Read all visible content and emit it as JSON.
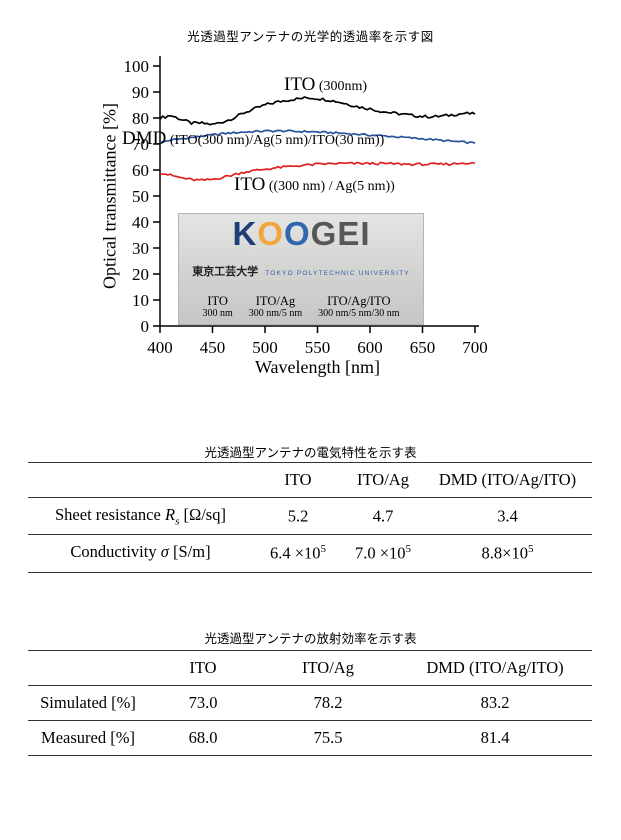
{
  "figure": {
    "title": "光透過型アンテナの光学的透過率を示す図",
    "x_axis_label": "Wavelength [nm]",
    "y_axis_label": "Optical transmittance [%]",
    "labels": {
      "ito": {
        "name": "ITO",
        "detail": " (300nm)"
      },
      "dmd": {
        "name": "DMD",
        "detail": " (ITO(300 nm)/Ag(5 nm)/ITO(30 nm))"
      },
      "ito_ag": {
        "name": "ITO",
        "detail": " ((300 nm) / Ag(5 nm))"
      }
    },
    "photo": {
      "logo_letters": [
        {
          "char": "K",
          "color": "#1f3e78"
        },
        {
          "char": "O",
          "color": "#f0a63c"
        },
        {
          "char": "O",
          "color": "#2f66ae"
        },
        {
          "char": "G",
          "color": "#575757"
        },
        {
          "char": "E",
          "color": "#575757"
        },
        {
          "char": "I",
          "color": "#575757"
        }
      ],
      "logo_sub_jp": "東京工芸大学",
      "logo_sub_en": "TOKYO POLYTECHNIC UNIVERSITY",
      "samples": [
        {
          "name": "ITO",
          "spec": "300 nm"
        },
        {
          "name": "ITO/Ag",
          "spec": "300 nm/5 nm"
        },
        {
          "name": "ITO/Ag/ITO",
          "spec": "300 nm/5 nm/30 nm"
        }
      ]
    }
  },
  "chart_data": [
    {
      "type": "line",
      "title": "光透過型アンテナの光学的透過率を示す図",
      "xlabel": "Wavelength [nm]",
      "ylabel": "Optical transmittance [%]",
      "xlim": [
        400,
        700
      ],
      "ylim": [
        0,
        100
      ],
      "x_ticks": [
        400,
        450,
        500,
        550,
        600,
        650,
        700
      ],
      "y_ticks": [
        0,
        10,
        20,
        30,
        40,
        50,
        60,
        70,
        80,
        90,
        100
      ],
      "grid": false,
      "legend_position": "inline-annotations",
      "x": [
        400,
        410,
        420,
        430,
        440,
        450,
        460,
        470,
        480,
        490,
        500,
        510,
        520,
        530,
        540,
        550,
        560,
        570,
        580,
        590,
        600,
        610,
        620,
        630,
        640,
        650,
        660,
        670,
        680,
        690,
        700
      ],
      "series": [
        {
          "name": "ITO (300nm)",
          "color": "#000000",
          "noise": 0.55,
          "values": [
            80,
            81,
            79.5,
            78,
            78,
            77.5,
            78.5,
            80,
            82,
            83.5,
            85,
            86,
            86.8,
            87.3,
            87.8,
            87.5,
            87,
            86.2,
            85.2,
            84.2,
            83.5,
            82.6,
            82,
            81.5,
            81,
            80.6,
            80.5,
            80.8,
            81.3,
            81.8,
            81.5
          ]
        },
        {
          "name": "DMD (ITO(300 nm)/Ag(5 nm)/ITO(30 nm))",
          "color": "#28519e",
          "noise": 0.35,
          "values": [
            70.5,
            71.5,
            72,
            72.5,
            73,
            73.5,
            74,
            74.3,
            74.6,
            74.8,
            75,
            75,
            75,
            74.8,
            74.8,
            74.6,
            74.4,
            74.2,
            74,
            73.7,
            73.4,
            73.2,
            72.9,
            72.6,
            72.3,
            72,
            71.7,
            71.3,
            71,
            70.7,
            70.3
          ]
        },
        {
          "name": "ITO ((300 nm) / Ag(5 nm))",
          "color": "#e01f1f",
          "noise": 0.45,
          "values": [
            59,
            58,
            57,
            56.3,
            56,
            56.4,
            57.2,
            58.2,
            59.2,
            59.8,
            60.3,
            60.8,
            61.2,
            61.6,
            61.9,
            62.2,
            62.4,
            62.5,
            62.5,
            62.5,
            62.5,
            62.5,
            62.4,
            62.3,
            62.2,
            62.2,
            62.2,
            62.2,
            62.4,
            62.8,
            62.5
          ]
        }
      ]
    },
    {
      "type": "table",
      "title": "光透過型アンテナの電気特性を示す表",
      "columns": [
        "",
        "ITO",
        "ITO/Ag",
        "DMD (ITO/Ag/ITO)"
      ],
      "rows": [
        [
          "Sheet resistance Rs [Ω/sq]",
          "5.2",
          "4.7",
          "3.4"
        ],
        [
          "Conductivity σ [S/m]",
          "6.4 ×10⁵",
          "7.0 ×10⁵",
          "8.8×10⁵"
        ]
      ]
    },
    {
      "type": "table",
      "title": "光透過型アンテナの放射効率を示す表",
      "columns": [
        "",
        "ITO",
        "ITO/Ag",
        "DMD (ITO/Ag/ITO)"
      ],
      "rows": [
        [
          "Simulated [%]",
          "73.0",
          "78.2",
          "83.2"
        ],
        [
          "Measured [%]",
          "68.0",
          "75.5",
          "81.4"
        ]
      ]
    }
  ],
  "tables": {
    "table1": {
      "title": "光透過型アンテナの電気特性を示す表",
      "headers": [
        "ITO",
        "ITO/Ag",
        "DMD (ITO/Ag/ITO)"
      ],
      "rows": [
        {
          "label": {
            "pre": "Sheet resistance ",
            "var": "R",
            "sub": "s",
            "post": " [Ω/sq]"
          },
          "values": [
            {
              "base": "5.2"
            },
            {
              "base": "4.7"
            },
            {
              "base": "3.4"
            }
          ]
        },
        {
          "label": {
            "pre": "Conductivity ",
            "var": "σ",
            "sub": "",
            "post": " [S/m]"
          },
          "values": [
            {
              "base": "6.4 ×10",
              "exp": "5"
            },
            {
              "base": "7.0 ×10",
              "exp": "5"
            },
            {
              "base": "8.8×10",
              "exp": "5"
            }
          ]
        }
      ]
    },
    "table2": {
      "title": "光透過型アンテナの放射効率を示す表",
      "headers": [
        "ITO",
        "ITO/Ag",
        "DMD (ITO/Ag/ITO)"
      ],
      "rows": [
        {
          "label": "Simulated [%]",
          "values": [
            "73.0",
            "78.2",
            "83.2"
          ]
        },
        {
          "label": "Measured [%]",
          "values": [
            "68.0",
            "75.5",
            "81.4"
          ]
        }
      ]
    }
  }
}
